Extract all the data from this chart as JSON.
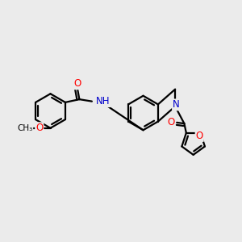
{
  "bg_color": "#ebebeb",
  "bond_color": "#000000",
  "bond_width": 1.6,
  "atom_colors": {
    "O": "#ff0000",
    "N": "#0000cc",
    "C": "#000000",
    "H": "#000000"
  },
  "font_size": 8.5,
  "fig_size": [
    3.0,
    3.0
  ],
  "dpi": 100,
  "xlim": [
    0,
    12
  ],
  "ylim": [
    0,
    12
  ]
}
